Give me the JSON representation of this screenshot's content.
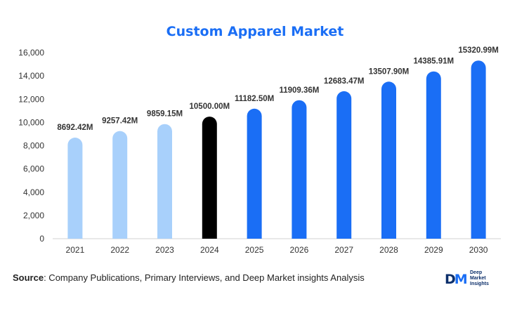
{
  "chart_data": {
    "type": "bar",
    "title": "Custom Apparel Market",
    "categories": [
      "2021",
      "2022",
      "2023",
      "2024",
      "2025",
      "2026",
      "2027",
      "2028",
      "2029",
      "2030"
    ],
    "values": [
      8692.42,
      9257.42,
      9859.15,
      10500.0,
      11182.5,
      11909.36,
      12683.47,
      13507.9,
      14385.91,
      15320.99
    ],
    "value_labels": [
      "8692.42M",
      "9257.42M",
      "9859.15M",
      "10500.00M",
      "11182.50M",
      "11909.36M",
      "12683.47M",
      "13507.90M",
      "14385.91M",
      "15320.99M"
    ],
    "bar_colors": [
      "#a8d0fb",
      "#a8d0fb",
      "#a8d0fb",
      "#000000",
      "#1a6ef5",
      "#1a6ef5",
      "#1a6ef5",
      "#1a6ef5",
      "#1a6ef5",
      "#1a6ef5"
    ],
    "y_ticks": [
      0,
      2000,
      4000,
      6000,
      8000,
      10000,
      12000,
      14000,
      16000
    ],
    "y_tick_labels": [
      "0",
      "2,000",
      "4,000",
      "6,000",
      "8,000",
      "10,000",
      "12,000",
      "14,000",
      "16,000"
    ],
    "ylim": [
      0,
      16000
    ],
    "grid": false
  },
  "footer": {
    "source_label": "Source",
    "source_text": ": Company Publications, Primary Interviews, and Deep Market insights Analysis"
  },
  "logo": {
    "mark_left": "D",
    "mark_right": "M",
    "line1": "Deep",
    "line2": "Market",
    "line3": "Insights"
  },
  "colors": {
    "title": "#1a6ef5",
    "history": "#a8d0fb",
    "base_year": "#000000",
    "forecast": "#1a6ef5"
  }
}
